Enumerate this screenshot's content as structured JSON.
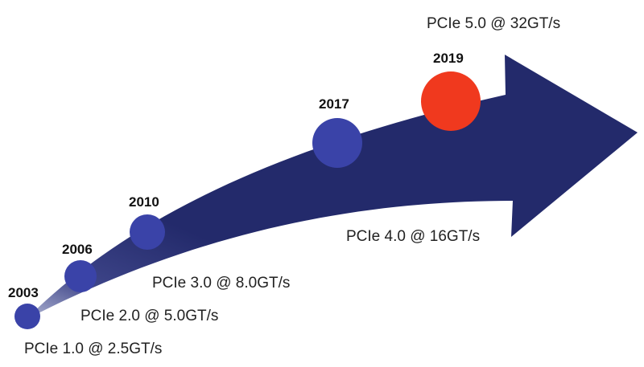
{
  "colors": {
    "arrow": "#232a6b",
    "arrow_tail": "#9aa0c4",
    "circle": "#3a43a8",
    "highlight": "#f0391e",
    "text": "#222222"
  },
  "milestones": [
    {
      "year": "2003",
      "label": "PCIe 1.0 @ 2.5GT/s",
      "highlight": false
    },
    {
      "year": "2006",
      "label": "PCIe 2.0 @ 5.0GT/s",
      "highlight": false
    },
    {
      "year": "2010",
      "label": "PCIe 3.0 @ 8.0GT/s",
      "highlight": false
    },
    {
      "year": "2017",
      "label": "PCIe 4.0 @ 16GT/s",
      "highlight": false
    },
    {
      "year": "2019",
      "label": "PCIe 5.0 @ 32GT/s",
      "highlight": true
    }
  ]
}
